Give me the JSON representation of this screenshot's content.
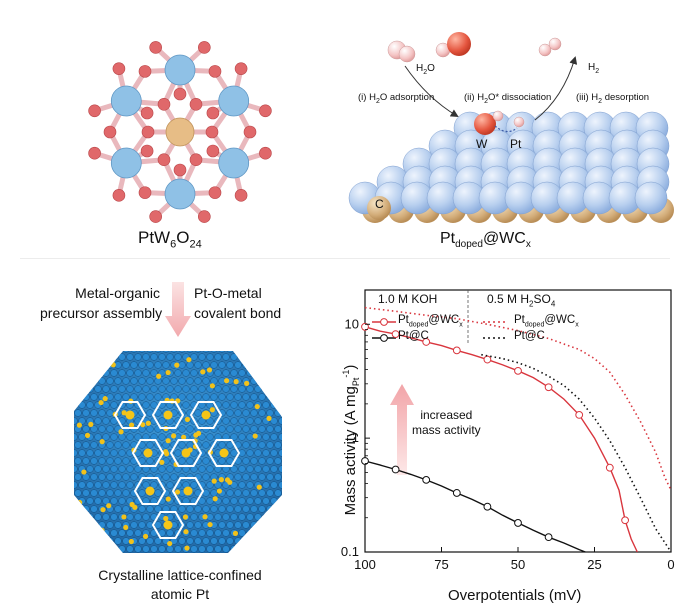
{
  "top_left": {
    "formula_base": "PtW",
    "sub1": "6",
    "mid": "O",
    "sub2": "24"
  },
  "top_right": {
    "h2o": {
      "base": "H",
      "sub": "2",
      "tail": "O"
    },
    "h2": {
      "base": "H",
      "sub": "2"
    },
    "step1": {
      "pre": "(i) H",
      "sub": "2",
      "post": "O adsorption"
    },
    "step2": {
      "pre": "(ii) H",
      "sub": "2",
      "post": "O* dissociation"
    },
    "step3": {
      "pre": "(iii) H",
      "sub": "2",
      "post": " desorption"
    },
    "w_label": "W",
    "pt_label": "Pt",
    "c_label": "C",
    "caption": {
      "base": "Pt",
      "sub": "doped",
      "mid": "@WC",
      "sub2": "x"
    }
  },
  "bottom_left": {
    "left_text": [
      "Metal-organic",
      "precursor assembly"
    ],
    "right_text": [
      "Pt-O-metal",
      "covalent bond"
    ],
    "caption": [
      "Crystalline lattice-confined",
      "atomic Pt"
    ]
  },
  "chart_data": {
    "type": "line",
    "xlabel": "Overpotentials (mV)",
    "ylabel": {
      "base": "Mass activity (A mg",
      "sub": "Pt",
      "sup": "-1",
      "tail": ")"
    },
    "xlim": [
      100,
      0
    ],
    "ylim": [
      0.1,
      20
    ],
    "y_scale": "log",
    "x_ticks": [
      100,
      75,
      50,
      25,
      0
    ],
    "y_ticks": [
      10,
      1,
      0.1
    ],
    "y_tick_labels": [
      "10",
      "1",
      "0.1"
    ],
    "x_tick_labels": [
      "100",
      "75",
      "50",
      "25",
      "0"
    ],
    "panel_labels": {
      "left": "1.0 M KOH",
      "right": {
        "pre": "0.5 M H",
        "sub": "2",
        "mid": "SO",
        "sub2": "4"
      }
    },
    "legend": [
      {
        "base": "Pt",
        "sub": "doped",
        "tail": "@WC",
        "sub2": "x"
      },
      {
        "base": "Pt@C"
      },
      {
        "base": "Pt",
        "sub": "doped",
        "tail": "@WC",
        "sub2": "x"
      },
      {
        "base": "Pt@C"
      }
    ],
    "annotation": [
      "increased",
      "mass activity"
    ],
    "series": [
      {
        "color": "#d9363e",
        "style": "solid",
        "marker": "circle",
        "x": [
          100,
          95,
          90,
          85,
          80,
          75,
          70,
          65,
          60,
          55,
          50,
          45,
          40,
          35,
          30,
          25,
          20,
          17,
          15,
          13,
          11
        ],
        "y": [
          9.5,
          8.7,
          8.2,
          7.6,
          7.0,
          6.5,
          5.9,
          5.4,
          4.9,
          4.4,
          3.9,
          3.4,
          2.8,
          2.2,
          1.6,
          1.0,
          0.55,
          0.35,
          0.19,
          0.13,
          0.1
        ]
      },
      {
        "color": "#111111",
        "style": "solid",
        "marker": "circle",
        "x": [
          100,
          95,
          90,
          85,
          80,
          75,
          70,
          65,
          60,
          55,
          50,
          45,
          40,
          35,
          30,
          28
        ],
        "y": [
          0.63,
          0.58,
          0.53,
          0.48,
          0.43,
          0.38,
          0.33,
          0.29,
          0.25,
          0.21,
          0.18,
          0.155,
          0.135,
          0.12,
          0.105,
          0.1
        ]
      },
      {
        "color": "#d9363e",
        "style": "dotted",
        "marker": "none",
        "x": [
          100,
          90,
          80,
          70,
          60,
          50,
          40,
          30,
          25,
          20,
          15,
          10,
          5,
          2,
          0
        ],
        "y": [
          14,
          13,
          12,
          11.2,
          10,
          8.8,
          7.5,
          6.0,
          5.0,
          3.8,
          2.4,
          1.4,
          0.75,
          0.45,
          0.35
        ]
      },
      {
        "color": "#111111",
        "style": "dotted",
        "marker": "none",
        "x": [
          62,
          55,
          50,
          45,
          40,
          35,
          30,
          25,
          20,
          15,
          10,
          5,
          0
        ],
        "y": [
          5.4,
          5.0,
          4.6,
          4.1,
          3.5,
          2.9,
          2.2,
          1.5,
          0.95,
          0.55,
          0.3,
          0.16,
          0.1
        ]
      }
    ]
  }
}
